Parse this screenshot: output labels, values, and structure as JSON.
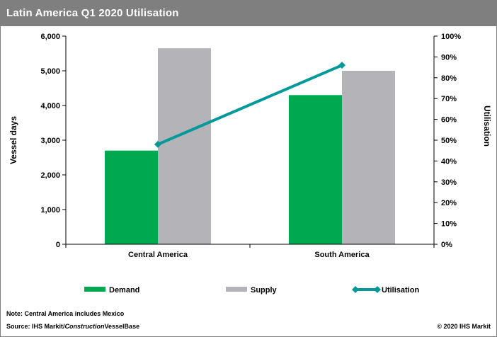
{
  "header": {
    "title": "Latin America  Q1 2020 Utilisation"
  },
  "chart_data": {
    "type": "bar",
    "categories": [
      "Central America",
      "South America"
    ],
    "series": [
      {
        "name": "Demand",
        "kind": "bar",
        "axis": "left",
        "color": "#00a84f",
        "values": [
          2700,
          4300
        ]
      },
      {
        "name": "Supply",
        "kind": "bar",
        "axis": "left",
        "color": "#b4b4b8",
        "values": [
          5650,
          5000
        ]
      },
      {
        "name": "Utilisation",
        "kind": "line",
        "axis": "right",
        "color": "#009999",
        "values": [
          0.48,
          0.86
        ]
      }
    ],
    "ylabel": "Vessel days",
    "y2label": "Utilisation",
    "ylim": [
      0,
      6000
    ],
    "y2lim": [
      0,
      1
    ],
    "yticks": [
      0,
      1000,
      2000,
      3000,
      4000,
      5000,
      6000
    ],
    "ytick_labels": [
      "0",
      "1,000",
      "2,000",
      "3,000",
      "4,000",
      "5,000",
      "6,000"
    ],
    "y2ticks": [
      0,
      0.1,
      0.2,
      0.3,
      0.4,
      0.5,
      0.6,
      0.7,
      0.8,
      0.9,
      1
    ],
    "y2tick_labels": [
      "0%",
      "10%",
      "20%",
      "30%",
      "40%",
      "50%",
      "60%",
      "70%",
      "80%",
      "90%",
      "100%"
    ],
    "grid": false,
    "legend_position": "bottom"
  },
  "footer": {
    "note": "Note: Central America includes Mexico",
    "source_prefix": "Source: IHS Markit/",
    "source_italic": "Construction",
    "source_suffix": "VesselBase",
    "copyright": "© 2020 IHS Markit"
  }
}
